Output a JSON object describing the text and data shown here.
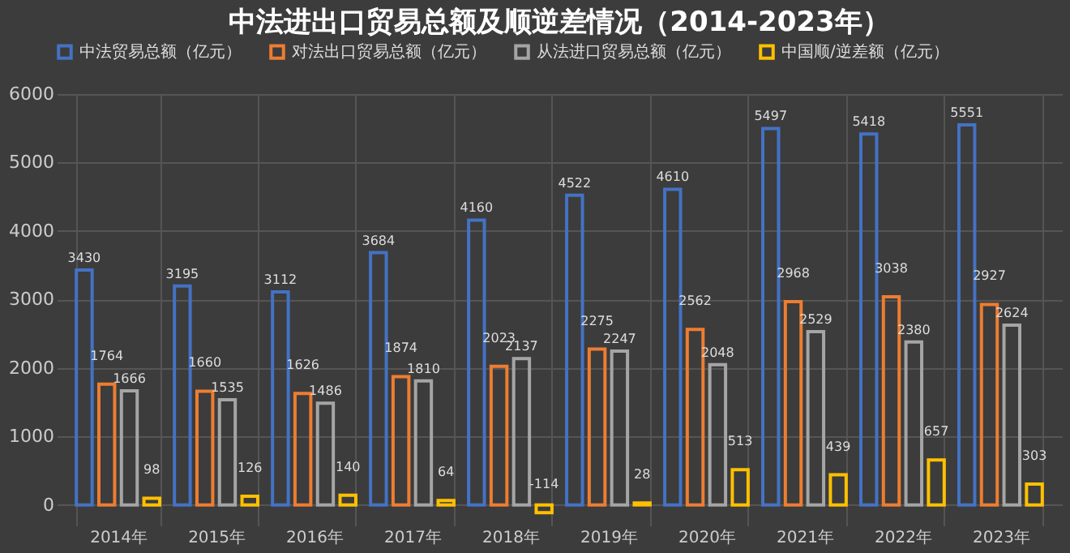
{
  "chart_data": {
    "type": "bar",
    "title": "中法进出口贸易总额及顺逆差情况（2014-2023年）",
    "categories": [
      "2014年",
      "2015年",
      "2016年",
      "2017年",
      "2018年",
      "2019年",
      "2020年",
      "2021年",
      "2022年",
      "2023年"
    ],
    "series": [
      {
        "name": "中法贸易总额（亿元）",
        "color": "#4472c4",
        "values": [
          3430,
          3195,
          3112,
          3684,
          4160,
          4522,
          4610,
          5497,
          5418,
          5551
        ]
      },
      {
        "name": "对法出口贸易总额（亿元）",
        "color": "#ed7d31",
        "values": [
          1764,
          1660,
          1626,
          1874,
          2023,
          2275,
          2562,
          2968,
          3038,
          2927
        ]
      },
      {
        "name": "从法进口贸易总额（亿元）",
        "color": "#a5a5a5",
        "values": [
          1666,
          1535,
          1486,
          1810,
          2137,
          2247,
          2048,
          2529,
          2380,
          2624
        ]
      },
      {
        "name": "中国顺/逆差额（亿元）",
        "color": "#ffc000",
        "values": [
          98,
          126,
          140,
          64,
          -114,
          28,
          513,
          439,
          657,
          303
        ]
      }
    ],
    "ylim": [
      -300,
      6000
    ],
    "yticks": [
      0,
      1000,
      2000,
      3000,
      4000,
      5000,
      6000
    ],
    "grid": true,
    "legend": "top",
    "data_labels": true
  }
}
